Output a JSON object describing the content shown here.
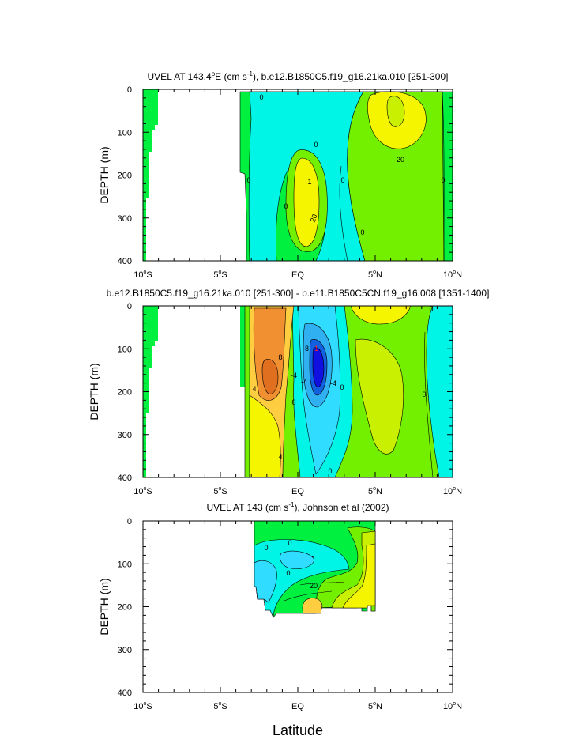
{
  "colors": {
    "fill_green": "#00f040",
    "lime": "#73f000",
    "yellow_green": "#c8f000",
    "yellow": "#f5f500",
    "gold": "#ffce40",
    "orange": "#f09030",
    "cyan": "#00f5e6",
    "light_cyan": "#30dcff",
    "mid_blue": "#30b0f0",
    "blue": "#1060e0",
    "deep_blue": "#1010e0",
    "contour_line": "#000000"
  },
  "x_axis_label": "Latitude",
  "chart_data": [
    {
      "type": "contour",
      "title_part1": "UVEL AT 143.4",
      "title_deg": "o",
      "title_part2": "E (cm s",
      "title_sup": "-1",
      "title_part3": "), b.e12.B1850C5.f19_g16.21ka.010 [251-300]",
      "ylabel": "DEPTH (m)",
      "xlim": [
        -10,
        10
      ],
      "ylim": [
        400,
        0
      ],
      "x_ticks": [
        {
          "value": -10,
          "num": "10",
          "deg": "o",
          "hem": "S"
        },
        {
          "value": -5,
          "num": "5",
          "deg": "o",
          "hem": "S"
        },
        {
          "value": 0,
          "num": "EQ",
          "deg": "",
          "hem": ""
        },
        {
          "value": 5,
          "num": "5",
          "deg": "o",
          "hem": "N"
        },
        {
          "value": 10,
          "num": "10",
          "deg": "o",
          "hem": "N"
        }
      ],
      "y_ticks": [
        "0",
        "100",
        "200",
        "300",
        "400"
      ],
      "contour_labels": [
        "0",
        "0",
        "0",
        "0",
        "0",
        "0",
        "0",
        "20",
        "20",
        "1"
      ]
    },
    {
      "type": "contour",
      "title": "b.e12.B1850C5.f19_g16.21ka.010 [251-300] - b.e11.B1850C5CN.f19_g16.008 [1351-1400]",
      "ylabel": "DEPTH (m)",
      "xlim": [
        -10,
        10
      ],
      "ylim": [
        400,
        0
      ],
      "x_ticks": [
        {
          "value": -10,
          "num": "10",
          "deg": "o",
          "hem": "S"
        },
        {
          "value": -5,
          "num": "5",
          "deg": "o",
          "hem": "S"
        },
        {
          "value": 0,
          "num": "EQ",
          "deg": "",
          "hem": ""
        },
        {
          "value": 5,
          "num": "5",
          "deg": "o",
          "hem": "N"
        },
        {
          "value": 10,
          "num": "10",
          "deg": "o",
          "hem": "N"
        }
      ],
      "y_ticks": [
        "0",
        "100",
        "200",
        "300",
        "400"
      ],
      "contour_labels": [
        "8",
        "-8",
        "-4",
        "4",
        "-4",
        "0",
        "0",
        "0",
        "0",
        "-4",
        "4",
        "0",
        "-1"
      ]
    },
    {
      "type": "contour",
      "title_part1": "UVEL AT 143 (cm s",
      "title_sup": "-1",
      "title_part2": "), Johnson et al (2002)",
      "ylabel": "DEPTH (m)",
      "xlim": [
        -10,
        10
      ],
      "ylim": [
        400,
        0
      ],
      "x_ticks": [
        {
          "value": -10,
          "num": "10",
          "deg": "o",
          "hem": "S"
        },
        {
          "value": -5,
          "num": "5",
          "deg": "o",
          "hem": "S"
        },
        {
          "value": 0,
          "num": "EQ",
          "deg": "",
          "hem": ""
        },
        {
          "value": 5,
          "num": "5",
          "deg": "o",
          "hem": "N"
        },
        {
          "value": 10,
          "num": "10",
          "deg": "o",
          "hem": "N"
        }
      ],
      "y_ticks": [
        "0",
        "100",
        "200",
        "300",
        "400"
      ],
      "contour_labels": [
        "20",
        "0",
        "0",
        "0",
        "-"
      ]
    }
  ]
}
